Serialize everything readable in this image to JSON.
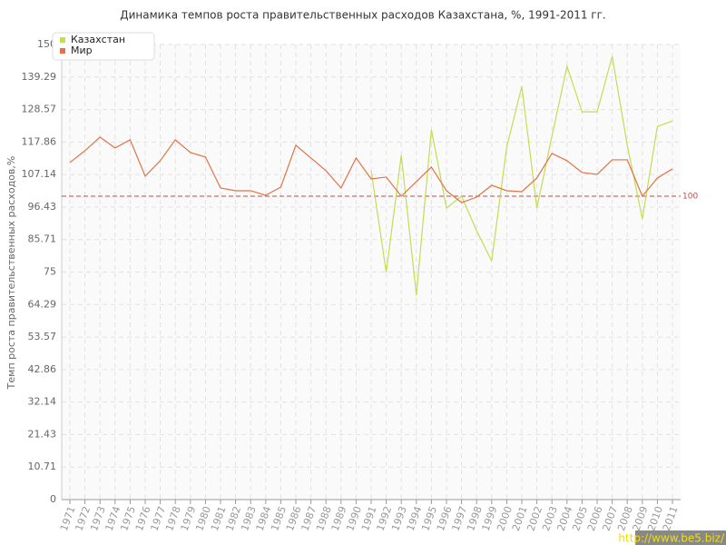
{
  "chart_data": {
    "type": "line",
    "title": "Динамика темпов роста правительственных расходов Казахстана, %, 1991-2011 гг.",
    "y_label": "Темп роста правительственных расходов,%",
    "categories": [
      "1971",
      "1972",
      "1973",
      "1974",
      "1975",
      "1976",
      "1977",
      "1978",
      "1979",
      "1980",
      "1981",
      "1982",
      "1983",
      "1984",
      "1985",
      "1986",
      "1987",
      "1988",
      "1989",
      "1990",
      "1991",
      "1992",
      "1993",
      "1994",
      "1995",
      "1996",
      "1997",
      "1998",
      "1999",
      "2000",
      "2001",
      "2002",
      "2003",
      "2004",
      "2005",
      "2006",
      "2007",
      "2008",
      "2009",
      "2010",
      "2011"
    ],
    "series": [
      {
        "name": "Казахстан",
        "color": "#c2de52",
        "values": [
          null,
          null,
          null,
          null,
          null,
          null,
          null,
          null,
          null,
          null,
          null,
          null,
          null,
          null,
          null,
          null,
          null,
          null,
          null,
          null,
          108.4,
          74.9,
          113.5,
          67.4,
          121.9,
          96.1,
          100,
          88.6,
          78.7,
          116.2,
          136.2,
          96.1,
          119.8,
          142.8,
          127.8,
          127.8,
          146.1,
          116.8,
          92.5,
          123,
          124.8
        ]
      },
      {
        "name": "Мир",
        "color": "#e07448",
        "values": [
          111.1,
          115,
          119.5,
          115.9,
          118.6,
          106.6,
          111.7,
          118.6,
          114.4,
          112.9,
          102.7,
          101.8,
          101.8,
          100.3,
          103,
          116.8,
          112.6,
          108.4,
          102.7,
          112.6,
          105.7,
          106.3,
          100,
          104.8,
          109.6,
          101.8,
          97.9,
          99.7,
          103.6,
          101.8,
          101.5,
          106,
          114.1,
          111.7,
          107.8,
          107.2,
          112,
          112,
          100,
          106,
          109
        ]
      }
    ],
    "ylim": [
      0,
      150
    ],
    "yticks": [
      0,
      10.71,
      21.43,
      32.14,
      42.86,
      53.57,
      64.29,
      75,
      85.71,
      96.43,
      107.14,
      117.86,
      128.57,
      139.29,
      150
    ],
    "reference_line": 100,
    "reference_color": "#b05050",
    "grid": true,
    "legend": "top-left",
    "watermark": "http://www.be5.biz/"
  }
}
